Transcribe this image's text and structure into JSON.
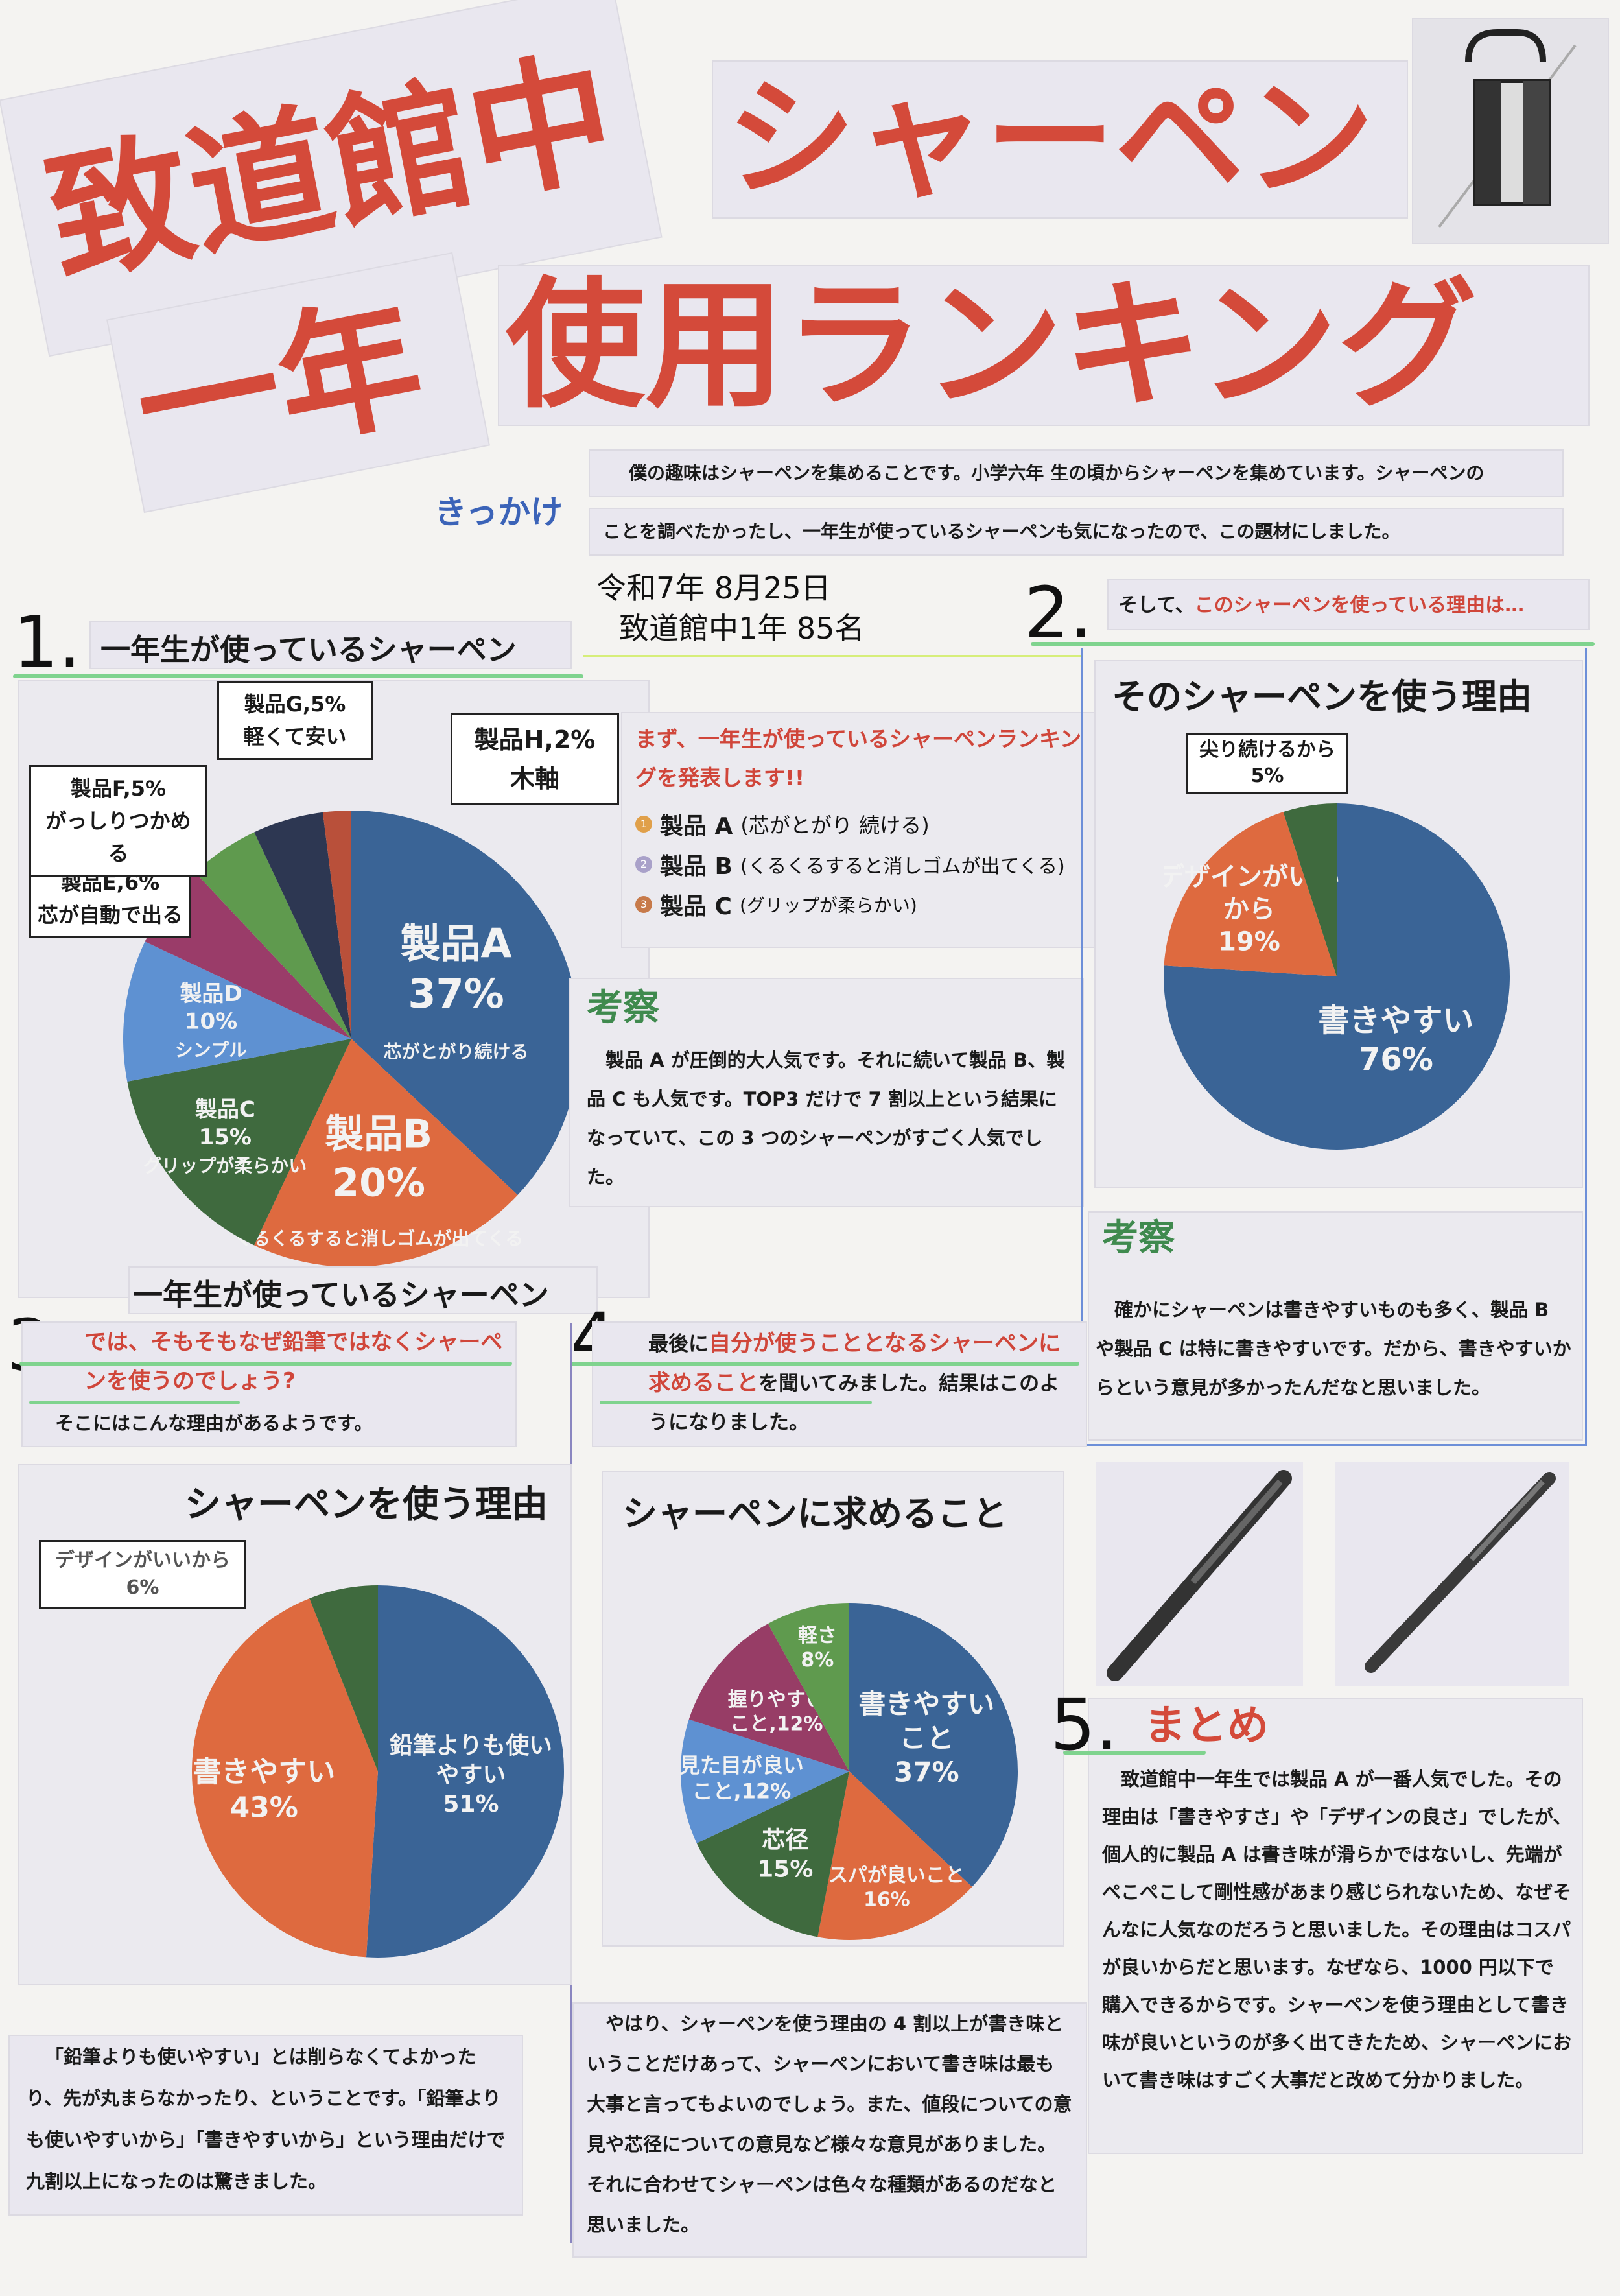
{
  "title": {
    "line1a": "致道館中",
    "line1b": "シャーペン",
    "line2a": "一年",
    "line2b": "使用ランキング"
  },
  "intro": {
    "label": "きっかけ",
    "line1": "僕の趣味はシャーペンを集めることです。小学六年 生の頃からシャーペンを集めています。シャーペンの",
    "line2": "ことを調べたかったし、一年生が使っているシャーペンも気になったので、この題材にしました。",
    "date": "令和7年 8月25日",
    "respondents": "致道館中1年 85名"
  },
  "section1": {
    "number": "1.",
    "heading": "一年生が使っているシャーペン",
    "caption": "一年生が使っているシャーペン",
    "ranking_intro": "まず、一年生が使っているシャーペンランキングを発表します!!",
    "ranking": [
      {
        "rank": "1",
        "name": "製品 A",
        "note": "(芯がとがり 続ける)"
      },
      {
        "rank": "2",
        "name": "製品 B",
        "note": "(くるくるすると消しゴムが出てくる)"
      },
      {
        "rank": "3",
        "name": "製品 C",
        "note": "(グリップが柔らかい)"
      }
    ],
    "kosatsu_title": "考察",
    "kosatsu_text": "製品 A が圧倒的大人気です。それに続いて製品 B、製品 C も人気です。TOP3 だけで 7 割以上という結果になっていて、この 3 つのシャーペンがすごく人気でした。"
  },
  "section2": {
    "number": "2.",
    "lead": "そして、",
    "lead_red": "このシャーペンを使っている理由は…",
    "kosatsu_title": "考察",
    "kosatsu_text": "確かにシャーペンは書きやすいものも多く、製品 B や製品 C は特に書きやすいです。だから、書きやすいからという意見が多かったんだなと思いました。"
  },
  "section3": {
    "number": "3.",
    "question_red": "では、そもそもなぜ鉛筆ではなくシャーペンを使うのでしょう?",
    "text": "そこにはこんな理由があるようです。",
    "comment": "「鉛筆よりも使いやすい」とは削らなくてよかったり、先が丸まらなかったり、ということです。「鉛筆よりも使いやすいから」「書きやすいから」という理由だけで九割以上になったのは驚きました。"
  },
  "section4": {
    "number": "4.",
    "lead": "最後に",
    "lead_red": "自分が使うこととなるシャーペンに求めること",
    "tail": "を聞いてみました。結果はこのようになりました。",
    "comment": "やはり、シャーペンを使う理由の 4 割以上が書き味ということだけあって、シャーペンにおいて書き味は最も大事と言ってもよいのでしょう。また、値段についての意見や芯径についての意見など様々な意見がありました。それに合わせてシャーペンは色々な種類があるのだなと思いました。"
  },
  "section5": {
    "number": "5.",
    "title": "まとめ",
    "text": "致道館中一年生では製品 A が一番人気でした。その理由は「書きやすさ」や「デザインの良さ」でしたが、個人的に製品 A は書き味が滑らかではないし、先端がぺこぺこして剛性感があまり感じられないため、なぜそんなに人気なのだろうと思いました。その理由はコスパが良いからだと思います。なぜなら、1000 円以下で購入できるからです。シャーペンを使う理由として書き味が良いというのが多く出てきたため、シャーペンにおいて書き味はすごく大事だと改めて分かりました。"
  },
  "colors": {
    "title_red": "#d44a3a",
    "kosatsu_green": "#3f8a4e",
    "highlight_green": "#7fd38e"
  },
  "chart_data": [
    {
      "type": "pie",
      "title": "",
      "slices": [
        {
          "label": [
            "製品A",
            "37%",
            "芯がとがり続ける"
          ],
          "value": 37,
          "color": "#3a6496"
        },
        {
          "label": [
            "製品B",
            "20%",
            "くるくるすると消しゴムが出てくる"
          ],
          "value": 20,
          "color": "#de6a3f"
        },
        {
          "label": [
            "製品C",
            "15%",
            "グリップが柔らかい"
          ],
          "value": 15,
          "color": "#3f6a3e"
        },
        {
          "label": [
            "製品D",
            "10%",
            "シンプル"
          ],
          "value": 10,
          "color": "#5e91d2"
        },
        {
          "label": [
            "製品E,6%",
            "芯が自動で出る"
          ],
          "value": 6,
          "color": "#9a3c69",
          "callout": true
        },
        {
          "label": [
            "製品F,5%",
            "がっしりつかめる"
          ],
          "value": 5,
          "color": "#5f9a4e",
          "callout": true
        },
        {
          "label": [
            "製品G,5%",
            "軽くて安い"
          ],
          "value": 5,
          "color": "#2d3752",
          "callout": true
        },
        {
          "label": [
            "製品H,2%",
            "木軸"
          ],
          "value": 2,
          "color": "#b9503a",
          "callout": true
        }
      ]
    },
    {
      "type": "pie",
      "title": "そのシャーペンを使う理由",
      "slices": [
        {
          "label": [
            "書きやすい",
            "76%"
          ],
          "value": 76,
          "color": "#3a6496"
        },
        {
          "label": [
            "デザインがいい",
            "から",
            "19%"
          ],
          "value": 19,
          "color": "#de6a3f"
        },
        {
          "label": [
            "尖り続けるから",
            "5%"
          ],
          "value": 5,
          "color": "#3f6a3e",
          "callout": true
        }
      ]
    },
    {
      "type": "pie",
      "title": "シャーペンを使う理由",
      "slices": [
        {
          "label": [
            "鉛筆よりも使い",
            "やすい",
            "51%"
          ],
          "value": 51,
          "color": "#3a6496"
        },
        {
          "label": [
            "書きやすい",
            "43%"
          ],
          "value": 43,
          "color": "#de6a3f"
        },
        {
          "label": [
            "デザインがいいから",
            "6%"
          ],
          "value": 6,
          "color": "#3f6a3e",
          "callout": true
        }
      ]
    },
    {
      "type": "pie",
      "title": "シャーペンに求めること",
      "slices": [
        {
          "label": [
            "書きやすい",
            "こと",
            "37%"
          ],
          "value": 37,
          "color": "#3a6496"
        },
        {
          "label": [
            "コスパが良いこと",
            "16%"
          ],
          "value": 16,
          "color": "#de6a3f"
        },
        {
          "label": [
            "芯径",
            "15%"
          ],
          "value": 15,
          "color": "#3f6a3e"
        },
        {
          "label": [
            "見た目が良い",
            "こと,12%"
          ],
          "value": 12,
          "color": "#5e91d2"
        },
        {
          "label": [
            "握りやすい",
            "こと,12%"
          ],
          "value": 12,
          "color": "#973d66"
        },
        {
          "label": [
            "軽さ",
            "8%"
          ],
          "value": 8,
          "color": "#5f9a4e"
        }
      ]
    }
  ]
}
